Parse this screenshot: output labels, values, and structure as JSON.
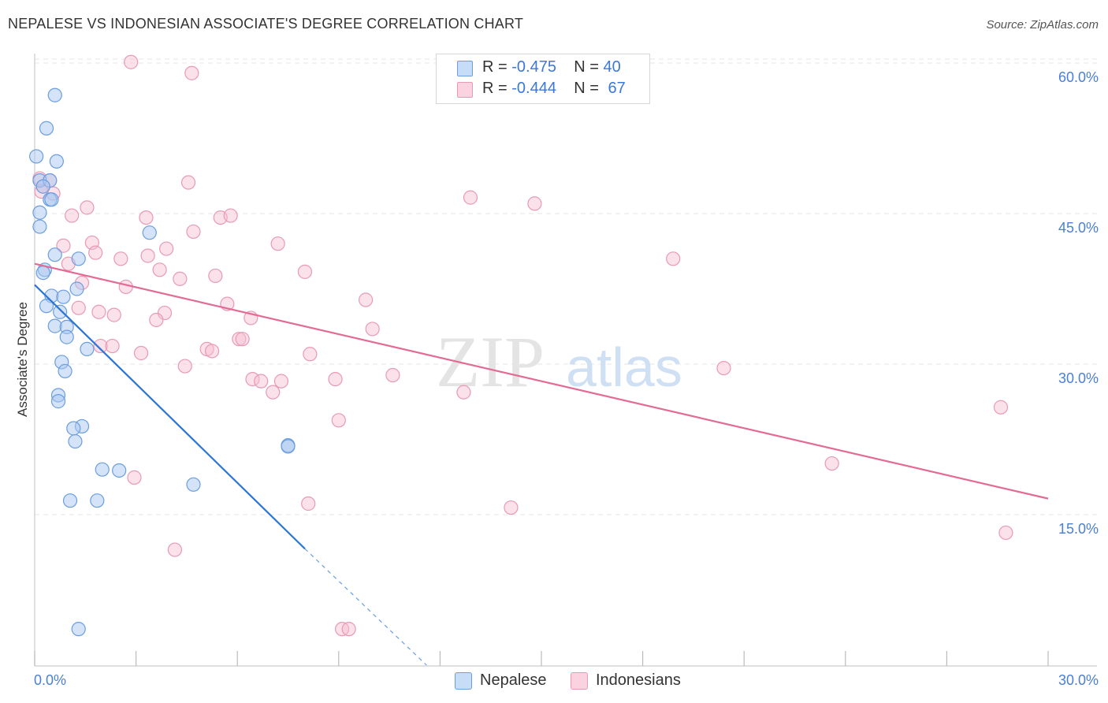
{
  "title": "NEPALESE VS INDONESIAN ASSOCIATE'S DEGREE CORRELATION CHART",
  "source": "Source: ZipAtlas.com",
  "watermark": {
    "zip": "ZIP",
    "atlas": "atlas"
  },
  "legend": {
    "rows": [
      {
        "r_label": "R =",
        "r_value": "-0.475",
        "n_label": "N =",
        "n_value": "40"
      },
      {
        "r_label": "R =",
        "r_value": "-0.444",
        "n_label": "N =",
        "n_value": "67"
      }
    ]
  },
  "bottom_legend": {
    "series1": "Nepalese",
    "series2": "Indonesians"
  },
  "colors": {
    "blue_fill": "#a9c8f0",
    "blue_stroke": "#6a9ee0",
    "blue_line": "#2a75d6",
    "pink_fill": "#f6bdd0",
    "pink_stroke": "#e89ab5",
    "pink_line": "#e46a96",
    "grid": "#e6e6e6",
    "tick_text": "#4a7fd4"
  },
  "chart_data": {
    "type": "scatter",
    "xlabel": "",
    "ylabel": "Associate's Degree",
    "xlim": [
      0,
      30
    ],
    "ylim": [
      0,
      64
    ],
    "x_tick_labels": [
      "0.0%",
      "30.0%"
    ],
    "y_ticks": [
      15,
      30,
      45,
      60
    ],
    "y_tick_labels": [
      "15.0%",
      "30.0%",
      "45.0%",
      "60.0%"
    ],
    "grid": true,
    "series": [
      {
        "name": "Nepalese",
        "color": "#6a9ee0",
        "points": [
          [
            0.6,
            56.8
          ],
          [
            0.35,
            53.5
          ],
          [
            0.05,
            50.7
          ],
          [
            0.65,
            50.2
          ],
          [
            0.15,
            48.3
          ],
          [
            0.45,
            48.3
          ],
          [
            0.25,
            47.7
          ],
          [
            0.45,
            46.4
          ],
          [
            0.5,
            46.4
          ],
          [
            0.15,
            45.1
          ],
          [
            0.15,
            43.7
          ],
          [
            3.4,
            43.1
          ],
          [
            0.6,
            40.9
          ],
          [
            1.3,
            40.5
          ],
          [
            0.3,
            39.4
          ],
          [
            0.25,
            39.1
          ],
          [
            1.25,
            37.5
          ],
          [
            0.5,
            36.8
          ],
          [
            0.85,
            36.7
          ],
          [
            0.35,
            35.8
          ],
          [
            0.75,
            35.2
          ],
          [
            0.6,
            33.8
          ],
          [
            0.95,
            33.7
          ],
          [
            0.95,
            32.7
          ],
          [
            1.55,
            31.5
          ],
          [
            0.8,
            30.2
          ],
          [
            0.9,
            29.3
          ],
          [
            0.7,
            26.9
          ],
          [
            0.7,
            26.3
          ],
          [
            1.4,
            23.8
          ],
          [
            1.15,
            23.6
          ],
          [
            1.2,
            22.3
          ],
          [
            7.5,
            21.9
          ],
          [
            7.5,
            21.8
          ],
          [
            2.0,
            19.5
          ],
          [
            2.5,
            19.4
          ],
          [
            4.7,
            18.0
          ],
          [
            1.05,
            16.4
          ],
          [
            1.85,
            16.4
          ],
          [
            1.3,
            3.6
          ]
        ]
      },
      {
        "name": "Indonesians",
        "color": "#e89ab5",
        "points": [
          [
            2.85,
            60.1
          ],
          [
            4.65,
            59.0
          ],
          [
            0.15,
            48.5
          ],
          [
            0.45,
            48.3
          ],
          [
            4.55,
            48.1
          ],
          [
            0.25,
            47.7
          ],
          [
            0.55,
            47.0
          ],
          [
            12.9,
            46.6
          ],
          [
            14.8,
            46.0
          ],
          [
            1.55,
            45.6
          ],
          [
            1.1,
            44.8
          ],
          [
            3.3,
            44.6
          ],
          [
            5.5,
            44.6
          ],
          [
            5.8,
            44.8
          ],
          [
            4.7,
            43.2
          ],
          [
            1.7,
            42.1
          ],
          [
            7.2,
            42.0
          ],
          [
            0.85,
            41.8
          ],
          [
            3.9,
            41.5
          ],
          [
            1.8,
            41.1
          ],
          [
            2.55,
            40.5
          ],
          [
            3.35,
            40.8
          ],
          [
            18.9,
            40.5
          ],
          [
            1.0,
            40.0
          ],
          [
            3.7,
            39.4
          ],
          [
            8.0,
            39.2
          ],
          [
            5.35,
            38.8
          ],
          [
            4.3,
            38.5
          ],
          [
            1.4,
            38.1
          ],
          [
            2.7,
            37.7
          ],
          [
            9.8,
            36.4
          ],
          [
            5.7,
            36.0
          ],
          [
            1.3,
            35.6
          ],
          [
            1.9,
            35.2
          ],
          [
            2.35,
            34.9
          ],
          [
            3.85,
            35.1
          ],
          [
            6.4,
            34.6
          ],
          [
            3.6,
            34.4
          ],
          [
            10.0,
            33.5
          ],
          [
            6.05,
            32.5
          ],
          [
            6.15,
            32.5
          ],
          [
            1.95,
            31.8
          ],
          [
            2.3,
            31.8
          ],
          [
            5.1,
            31.5
          ],
          [
            5.25,
            31.3
          ],
          [
            8.15,
            31.0
          ],
          [
            3.15,
            31.1
          ],
          [
            20.4,
            29.6
          ],
          [
            4.45,
            29.8
          ],
          [
            10.6,
            28.9
          ],
          [
            6.45,
            28.5
          ],
          [
            6.7,
            28.3
          ],
          [
            7.3,
            28.3
          ],
          [
            8.9,
            28.5
          ],
          [
            7.05,
            27.2
          ],
          [
            12.7,
            27.2
          ],
          [
            28.6,
            25.7
          ],
          [
            9.0,
            24.4
          ],
          [
            23.6,
            20.1
          ],
          [
            2.95,
            18.7
          ],
          [
            8.1,
            16.1
          ],
          [
            14.1,
            15.7
          ],
          [
            4.15,
            11.5
          ],
          [
            28.75,
            13.2
          ],
          [
            9.1,
            3.6
          ],
          [
            9.3,
            3.6
          ],
          [
            0.2,
            47.2
          ]
        ]
      }
    ],
    "trend_lines": [
      {
        "series": "Nepalese",
        "solid": [
          [
            0,
            37.9
          ],
          [
            8.0,
            11.6
          ]
        ],
        "dashed": [
          [
            8.0,
            11.6
          ],
          [
            11.6,
            0
          ]
        ]
      },
      {
        "series": "Indonesians",
        "solid": [
          [
            0,
            40.0
          ],
          [
            30,
            16.6
          ]
        ]
      }
    ]
  }
}
